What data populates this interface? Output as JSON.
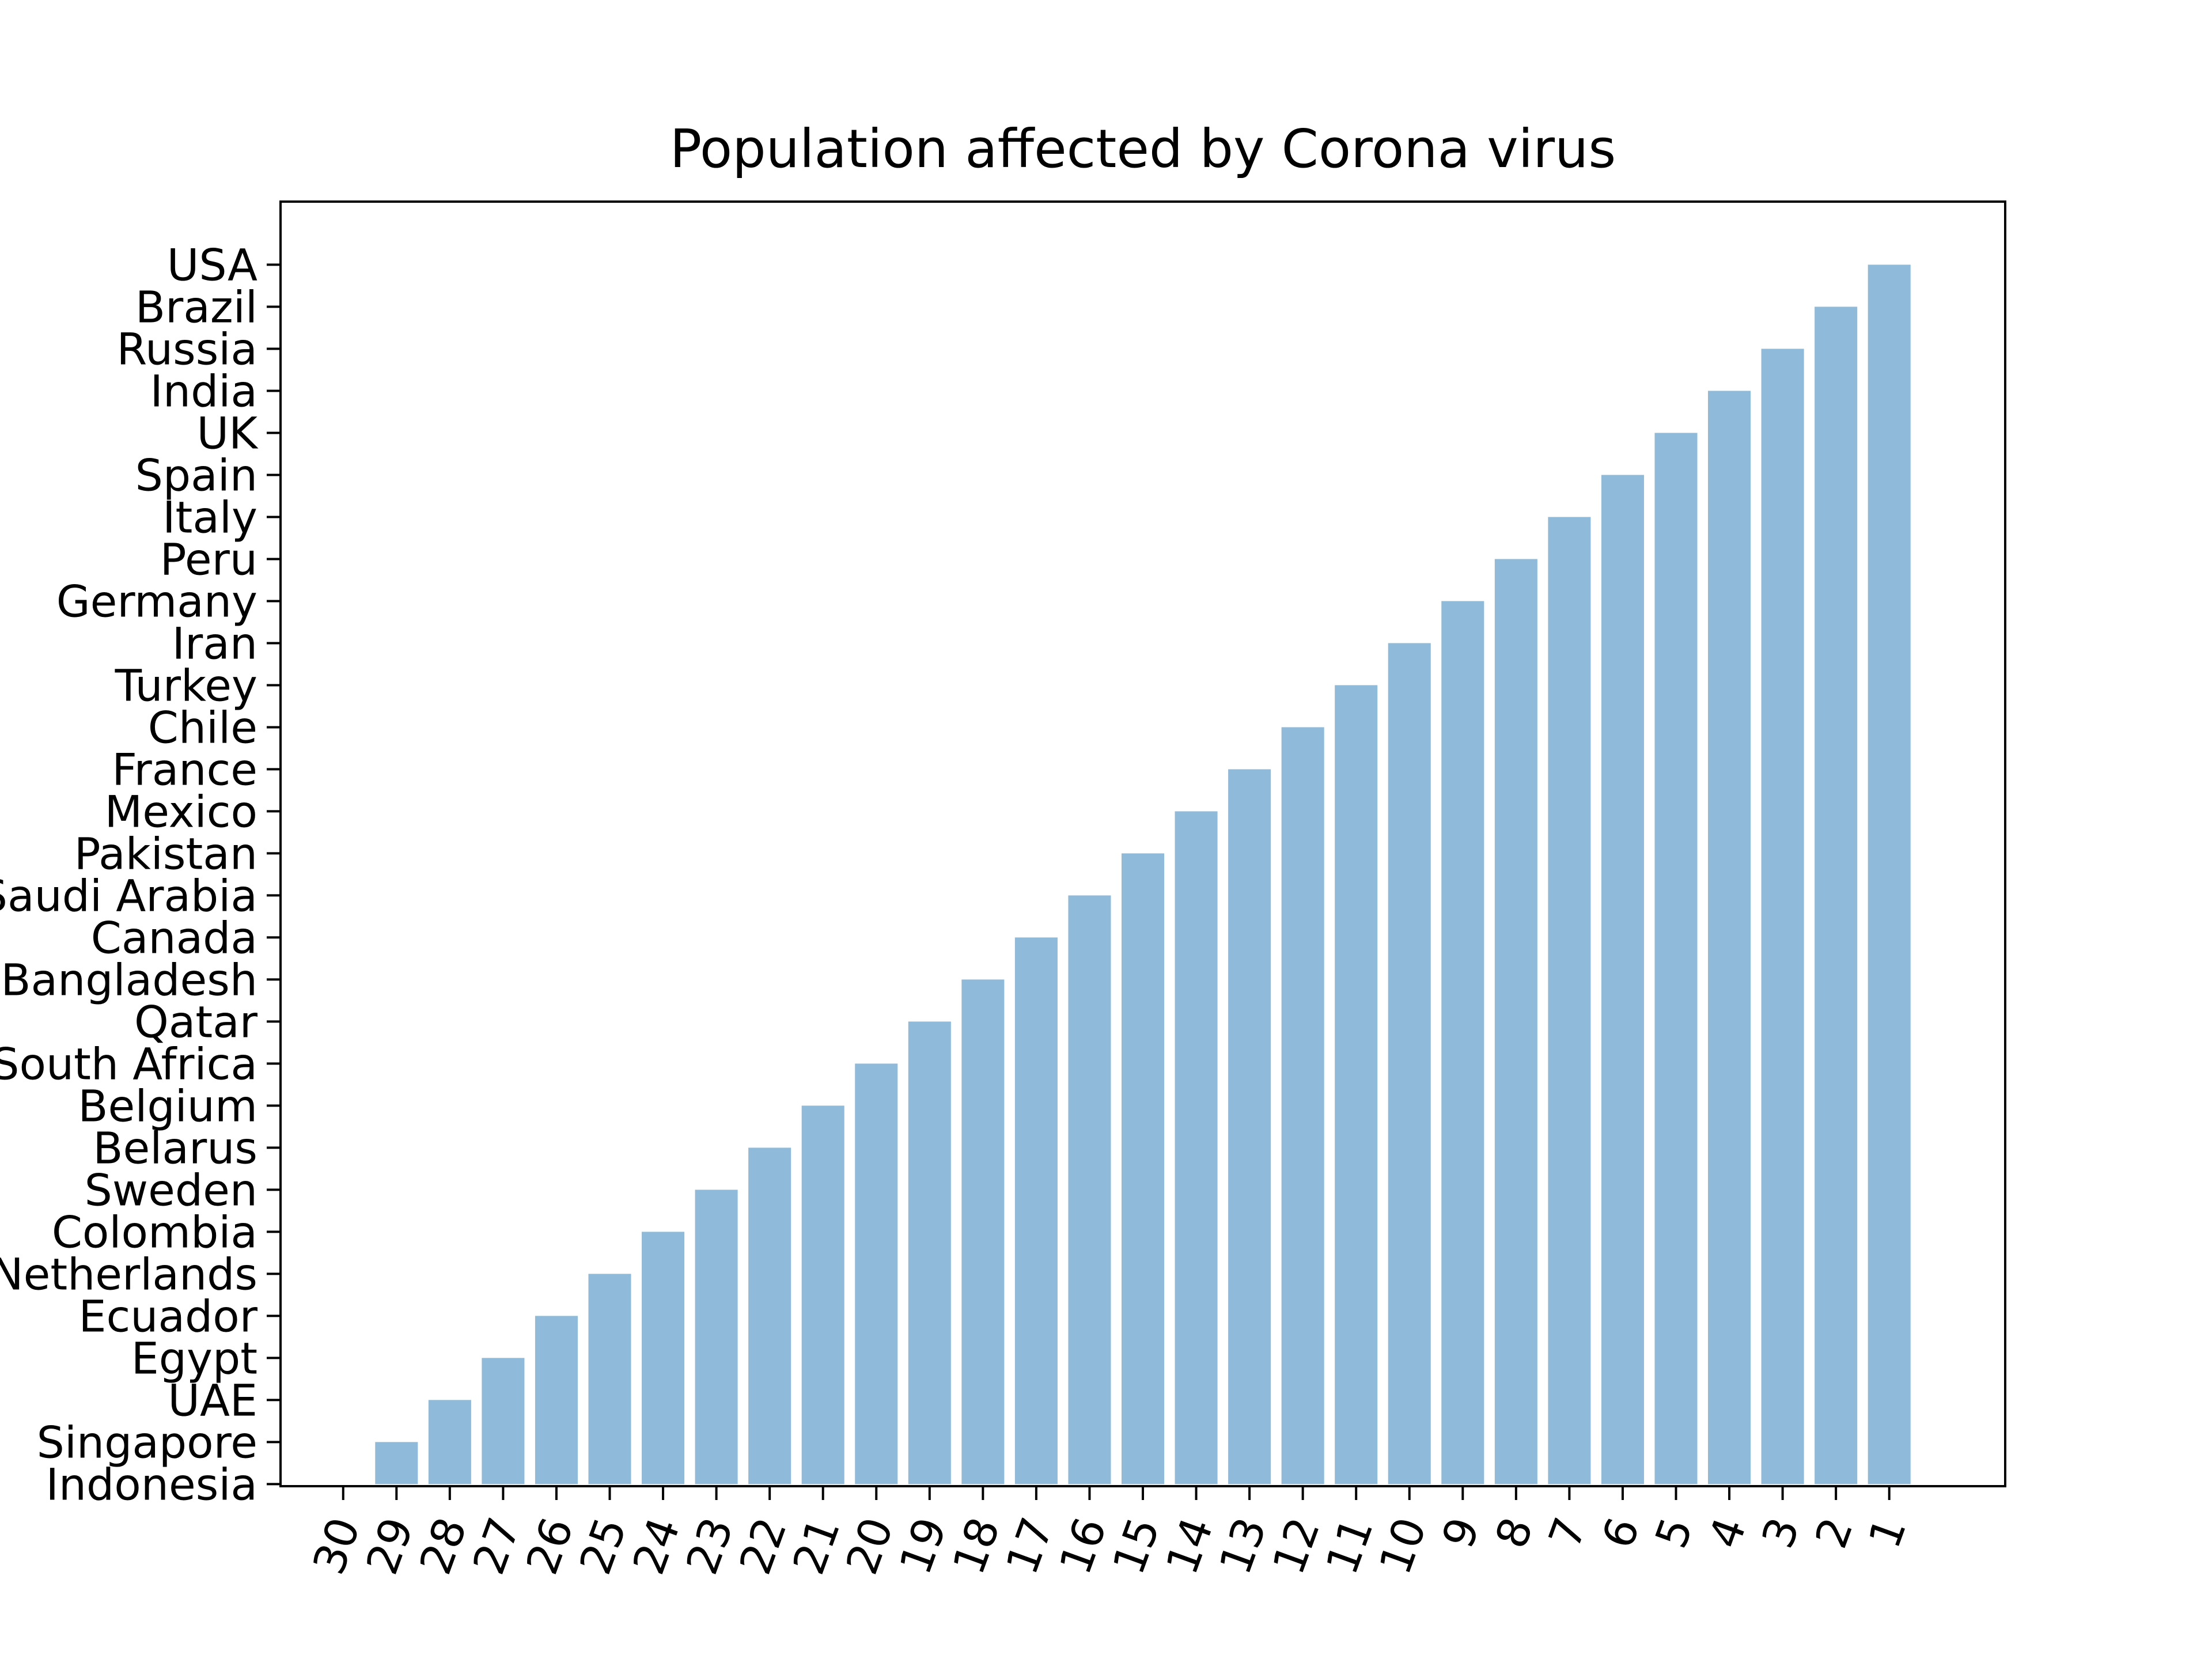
{
  "colors": {
    "bar": "#8fbad9",
    "axis": "#000000",
    "background": "#ffffff"
  },
  "chart_data": {
    "type": "bar",
    "title": "Population affected by Corona virus",
    "xlabel": "",
    "ylabel": "",
    "categories": [
      "30",
      "29",
      "28",
      "27",
      "26",
      "25",
      "24",
      "23",
      "22",
      "21",
      "20",
      "19",
      "18",
      "17",
      "16",
      "15",
      "14",
      "13",
      "12",
      "11",
      "10",
      "9",
      "8",
      "7",
      "6",
      "5",
      "4",
      "3",
      "2",
      "1"
    ],
    "values": [
      0,
      1,
      2,
      3,
      4,
      5,
      6,
      7,
      8,
      9,
      10,
      11,
      12,
      13,
      14,
      15,
      16,
      17,
      18,
      19,
      20,
      21,
      22,
      23,
      24,
      25,
      26,
      27,
      28,
      29
    ],
    "y_tick_labels": [
      "Indonesia",
      "Singapore",
      "UAE",
      "Egypt",
      "Ecuador",
      "Netherlands",
      "Colombia",
      "Sweden",
      "Belarus",
      "Belgium",
      "South Africa",
      "Qatar",
      "Bangladesh",
      "Canada",
      "Saudi Arabia",
      "Pakistan",
      "Mexico",
      "France",
      "Chile",
      "Turkey",
      "Iran",
      "Germany",
      "Peru",
      "Italy",
      "Spain",
      "UK",
      "India",
      "Russia",
      "Brazil",
      "USA"
    ],
    "ylim": [
      -0.05,
      30.5
    ],
    "xlim": [
      -1.175,
      31.175
    ],
    "grid": false,
    "legend": "none"
  }
}
